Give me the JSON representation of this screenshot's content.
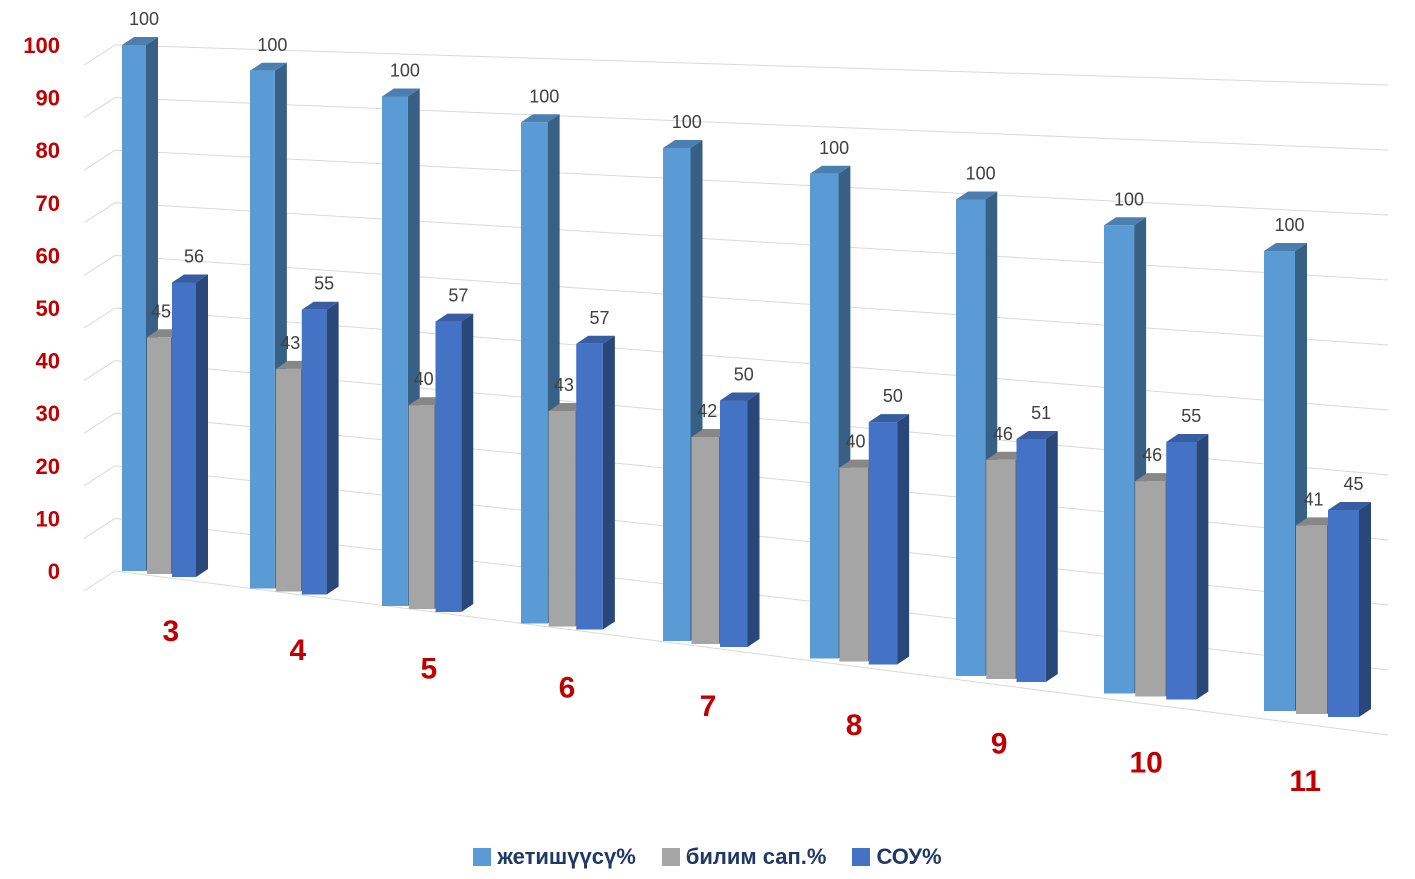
{
  "chart_data": {
    "type": "bar",
    "style": "3d-clustered-column",
    "categories": [
      "3",
      "4",
      "5",
      "6",
      "7",
      "8",
      "9",
      "10",
      "11"
    ],
    "series": [
      {
        "name": "жетишүүсү%",
        "values": [
          100,
          100,
          100,
          100,
          100,
          100,
          100,
          100,
          100
        ],
        "color": "#5b9bd5"
      },
      {
        "name": "билим сап.%",
        "values": [
          45,
          43,
          40,
          43,
          42,
          40,
          46,
          46,
          41
        ],
        "color": "#a5a5a5"
      },
      {
        "name": "СОУ%",
        "values": [
          56,
          55,
          57,
          57,
          50,
          50,
          51,
          55,
          45
        ],
        "color": "#4472c4"
      }
    ],
    "y_ticks": [
      "0",
      "10",
      "20",
      "30",
      "40",
      "50",
      "60",
      "70",
      "80",
      "90",
      "100"
    ],
    "ylim": [
      0,
      100
    ],
    "grid": true,
    "legend_position": "bottom",
    "category_label_color": "#c00000",
    "tick_label_color": "#c00000"
  }
}
